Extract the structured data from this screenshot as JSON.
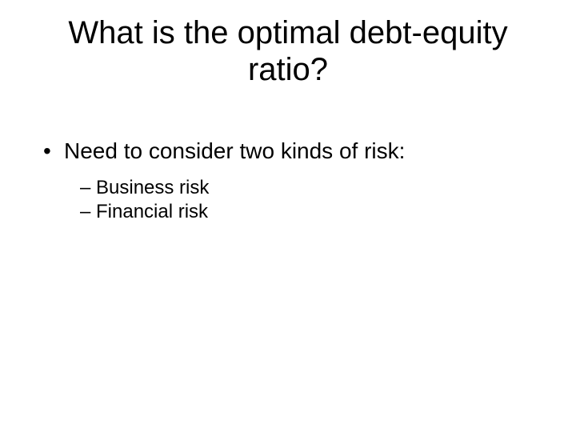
{
  "slide": {
    "title_line1": "What is the optimal debt-equity",
    "title_line2": "ratio?",
    "bullet1": "Need to consider two kinds of risk:",
    "sub1": "Business risk",
    "sub2": "Financial risk"
  },
  "style": {
    "background_color": "#ffffff",
    "text_color": "#000000",
    "font_family": "Arial",
    "title_fontsize": 40,
    "body_fontsize": 28,
    "sub_fontsize": 24,
    "bullet_glyph": "•",
    "dash_glyph": "–"
  }
}
